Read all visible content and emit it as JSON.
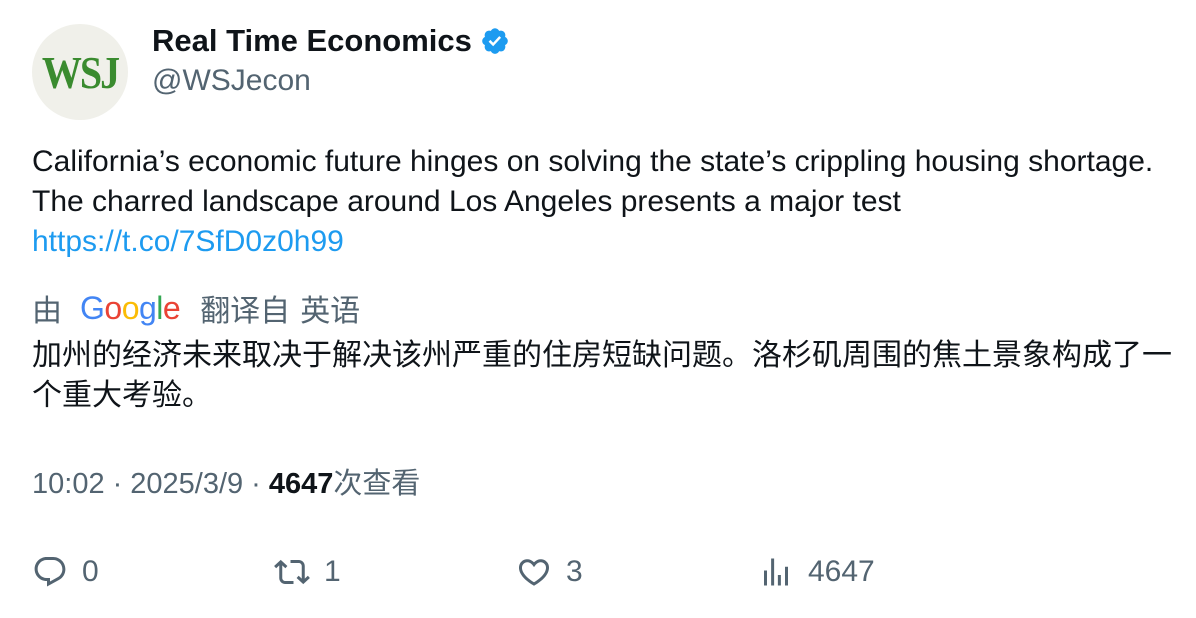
{
  "author": {
    "avatar_text": "WSJ",
    "display_name": "Real Time Economics",
    "handle": "@WSJecon",
    "verified_icon": "verified-badge-icon",
    "verified_color": "#1d9bf0"
  },
  "tweet": {
    "text": "California’s economic future hinges on solving the state’s crippling housing shortage. The charred landscape around Los Angeles presents a major test",
    "link": "https://t.co/7SfD0z0h99"
  },
  "translation": {
    "prefix": "由",
    "provider_letters": [
      "G",
      "o",
      "o",
      "g",
      "l",
      "e"
    ],
    "translated_from": "翻译自",
    "language": "英语",
    "text": "加州的经济未来取决于解决该州严重的住房短缺问题。洛杉矶周围的焦土景象构成了一个重大考验。"
  },
  "meta": {
    "time": "10:02",
    "separator": "·",
    "date": "2025/3/9",
    "views": "4647",
    "views_label": "次查看"
  },
  "actions": {
    "reply_count": "0",
    "retweet_count": "1",
    "like_count": "3",
    "views_count": "4647",
    "icons": [
      "reply-icon",
      "retweet-icon",
      "like-icon",
      "views-icon"
    ]
  },
  "colors": {
    "text_primary": "#0f1419",
    "text_secondary": "#536471",
    "link": "#1d9bf0",
    "avatar_bg": "#f0f0ea",
    "avatar_logo": "#3a8b2f"
  }
}
